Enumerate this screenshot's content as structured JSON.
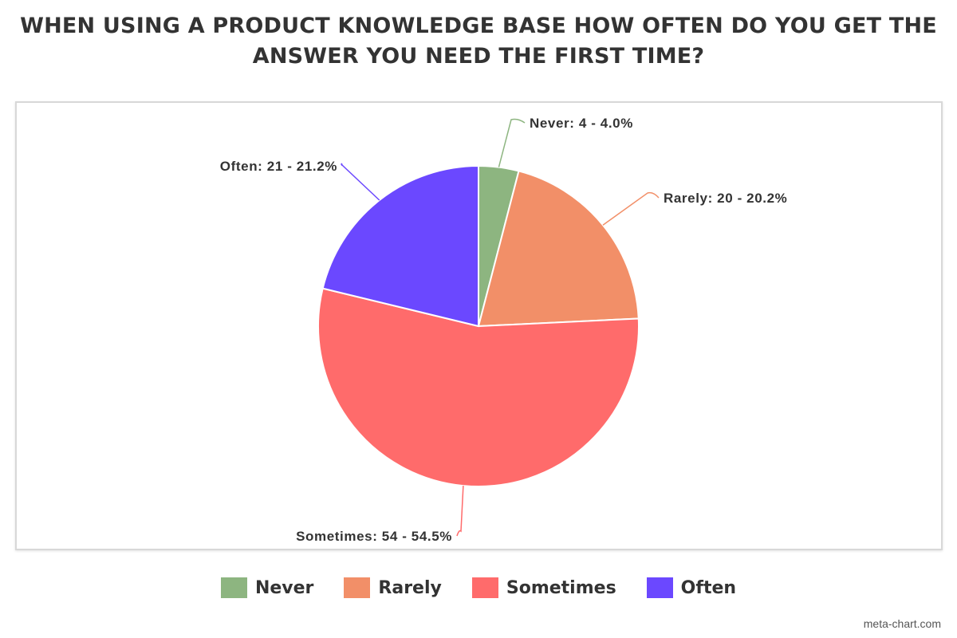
{
  "chart_data": {
    "type": "pie",
    "title_lines": [
      "WHEN USING A PRODUCT KNOWLEDGE BASE HOW OFTEN DO YOU GET THE",
      "ANSWER YOU NEED THE FIRST TIME?"
    ],
    "slices": [
      {
        "name": "Never",
        "value": 4,
        "percent": 4.0,
        "color": "#8db580",
        "label": "Never: 4 - 4.0%"
      },
      {
        "name": "Rarely",
        "value": 20,
        "percent": 20.2,
        "color": "#f28f68",
        "label": "Rarely: 20 - 20.2%"
      },
      {
        "name": "Sometimes",
        "value": 54,
        "percent": 54.5,
        "color": "#ff6b6b",
        "label": "Sometimes: 54 - 54.5%"
      },
      {
        "name": "Often",
        "value": 21,
        "percent": 21.2,
        "color": "#6b48ff",
        "label": "Often: 21 - 21.2%"
      }
    ],
    "legend_position": "bottom"
  },
  "watermark": "meta-chart.com"
}
